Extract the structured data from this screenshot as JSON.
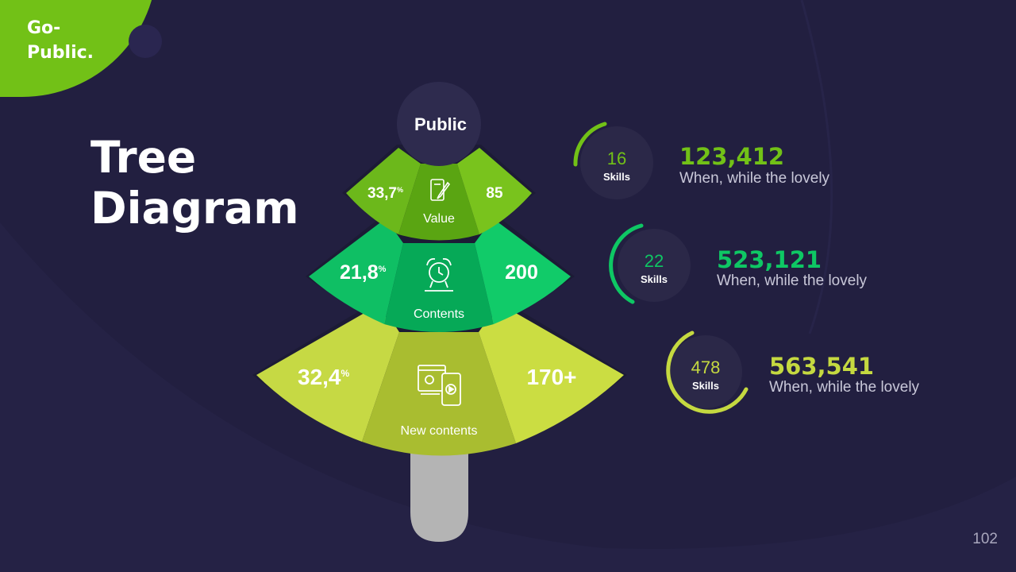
{
  "brand": {
    "logo_text": "Go-\nPublic."
  },
  "title": {
    "line1": "Tree",
    "line2": "Diagram"
  },
  "diagram": {
    "top_label": "Public",
    "tiers": [
      {
        "name": "Value",
        "left_value": "33,7",
        "left_unit": "%",
        "right_value": "85",
        "icon": "pen-tablet-icon",
        "color": "#72c117"
      },
      {
        "name": "Contents",
        "left_value": "21,8",
        "left_unit": "%",
        "right_value": "200",
        "icon": "alarm-clock-icon",
        "color": "#0ec764"
      },
      {
        "name": "New contents",
        "left_value": "32,4",
        "left_unit": "%",
        "right_value": "170+",
        "icon": "video-devices-icon",
        "color": "#c5d940"
      }
    ]
  },
  "stats": [
    {
      "skills_value": "16",
      "skills_label": "Skills",
      "value": "123,412",
      "description": "When, while the lovely",
      "color": "#72c117"
    },
    {
      "skills_value": "22",
      "skills_label": "Skills",
      "value": "523,121",
      "description": "When, while the lovely",
      "color": "#0ec764"
    },
    {
      "skills_value": "478",
      "skills_label": "Skills",
      "value": "563,541",
      "description": "When, while the lovely",
      "color": "#c5d940"
    }
  ],
  "page_number": "102"
}
